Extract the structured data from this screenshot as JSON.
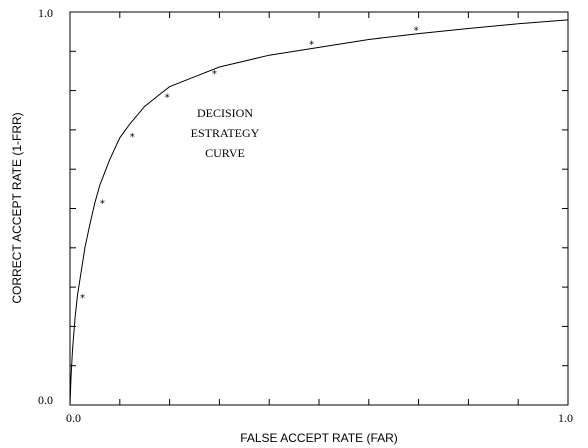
{
  "chart_data": {
    "type": "line",
    "xlabel": "FALSE ACCEPT RATE (FAR)",
    "ylabel": "CORRECT ACCEPT RATE (1-FRR)",
    "xlim": [
      0.0,
      1.0
    ],
    "ylim": [
      0.0,
      1.0
    ],
    "x_tick_labels": [
      "0.0",
      "1.0"
    ],
    "y_tick_labels": [
      "0.0",
      "1.0"
    ],
    "x_minor_ticks": [
      0.1,
      0.2,
      0.3,
      0.4,
      0.5,
      0.6,
      0.7,
      0.8,
      0.9
    ],
    "y_minor_ticks": [
      0.1,
      0.2,
      0.3,
      0.4,
      0.5,
      0.6,
      0.7,
      0.8,
      0.9
    ],
    "grid": false,
    "annotation": [
      "DECISION",
      "ESTRATEGY",
      "CURVE"
    ],
    "series": [
      {
        "curve": {
          "x": [
            0.0,
            0.002,
            0.005,
            0.01,
            0.015,
            0.02,
            0.03,
            0.04,
            0.05,
            0.06,
            0.08,
            0.1,
            0.12,
            0.15,
            0.18,
            0.2,
            0.25,
            0.3,
            0.35,
            0.4,
            0.5,
            0.6,
            0.7,
            0.8,
            0.9,
            1.0
          ],
          "y": [
            0.0,
            0.07,
            0.14,
            0.22,
            0.28,
            0.32,
            0.4,
            0.46,
            0.515,
            0.56,
            0.625,
            0.68,
            0.715,
            0.76,
            0.79,
            0.81,
            0.835,
            0.86,
            0.875,
            0.89,
            0.91,
            0.93,
            0.945,
            0.958,
            0.97,
            0.98
          ]
        },
        "marker": "*",
        "points": {
          "x": [
            0.025,
            0.065,
            0.125,
            0.195,
            0.29,
            0.485,
            0.695
          ],
          "y": [
            0.275,
            0.515,
            0.685,
            0.785,
            0.845,
            0.92,
            0.955
          ]
        }
      }
    ]
  }
}
